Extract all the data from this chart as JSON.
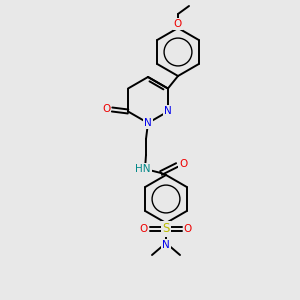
{
  "background_color": "#e8e8e8",
  "bond_color": "#000000",
  "atom_colors": {
    "N": "#0000ee",
    "O": "#ee0000",
    "S": "#bbbb00",
    "NH": "#008888",
    "C": "#000000"
  },
  "figsize": [
    3.0,
    3.0
  ],
  "dpi": 100,
  "line_width": 1.4,
  "font_size": 7.5
}
